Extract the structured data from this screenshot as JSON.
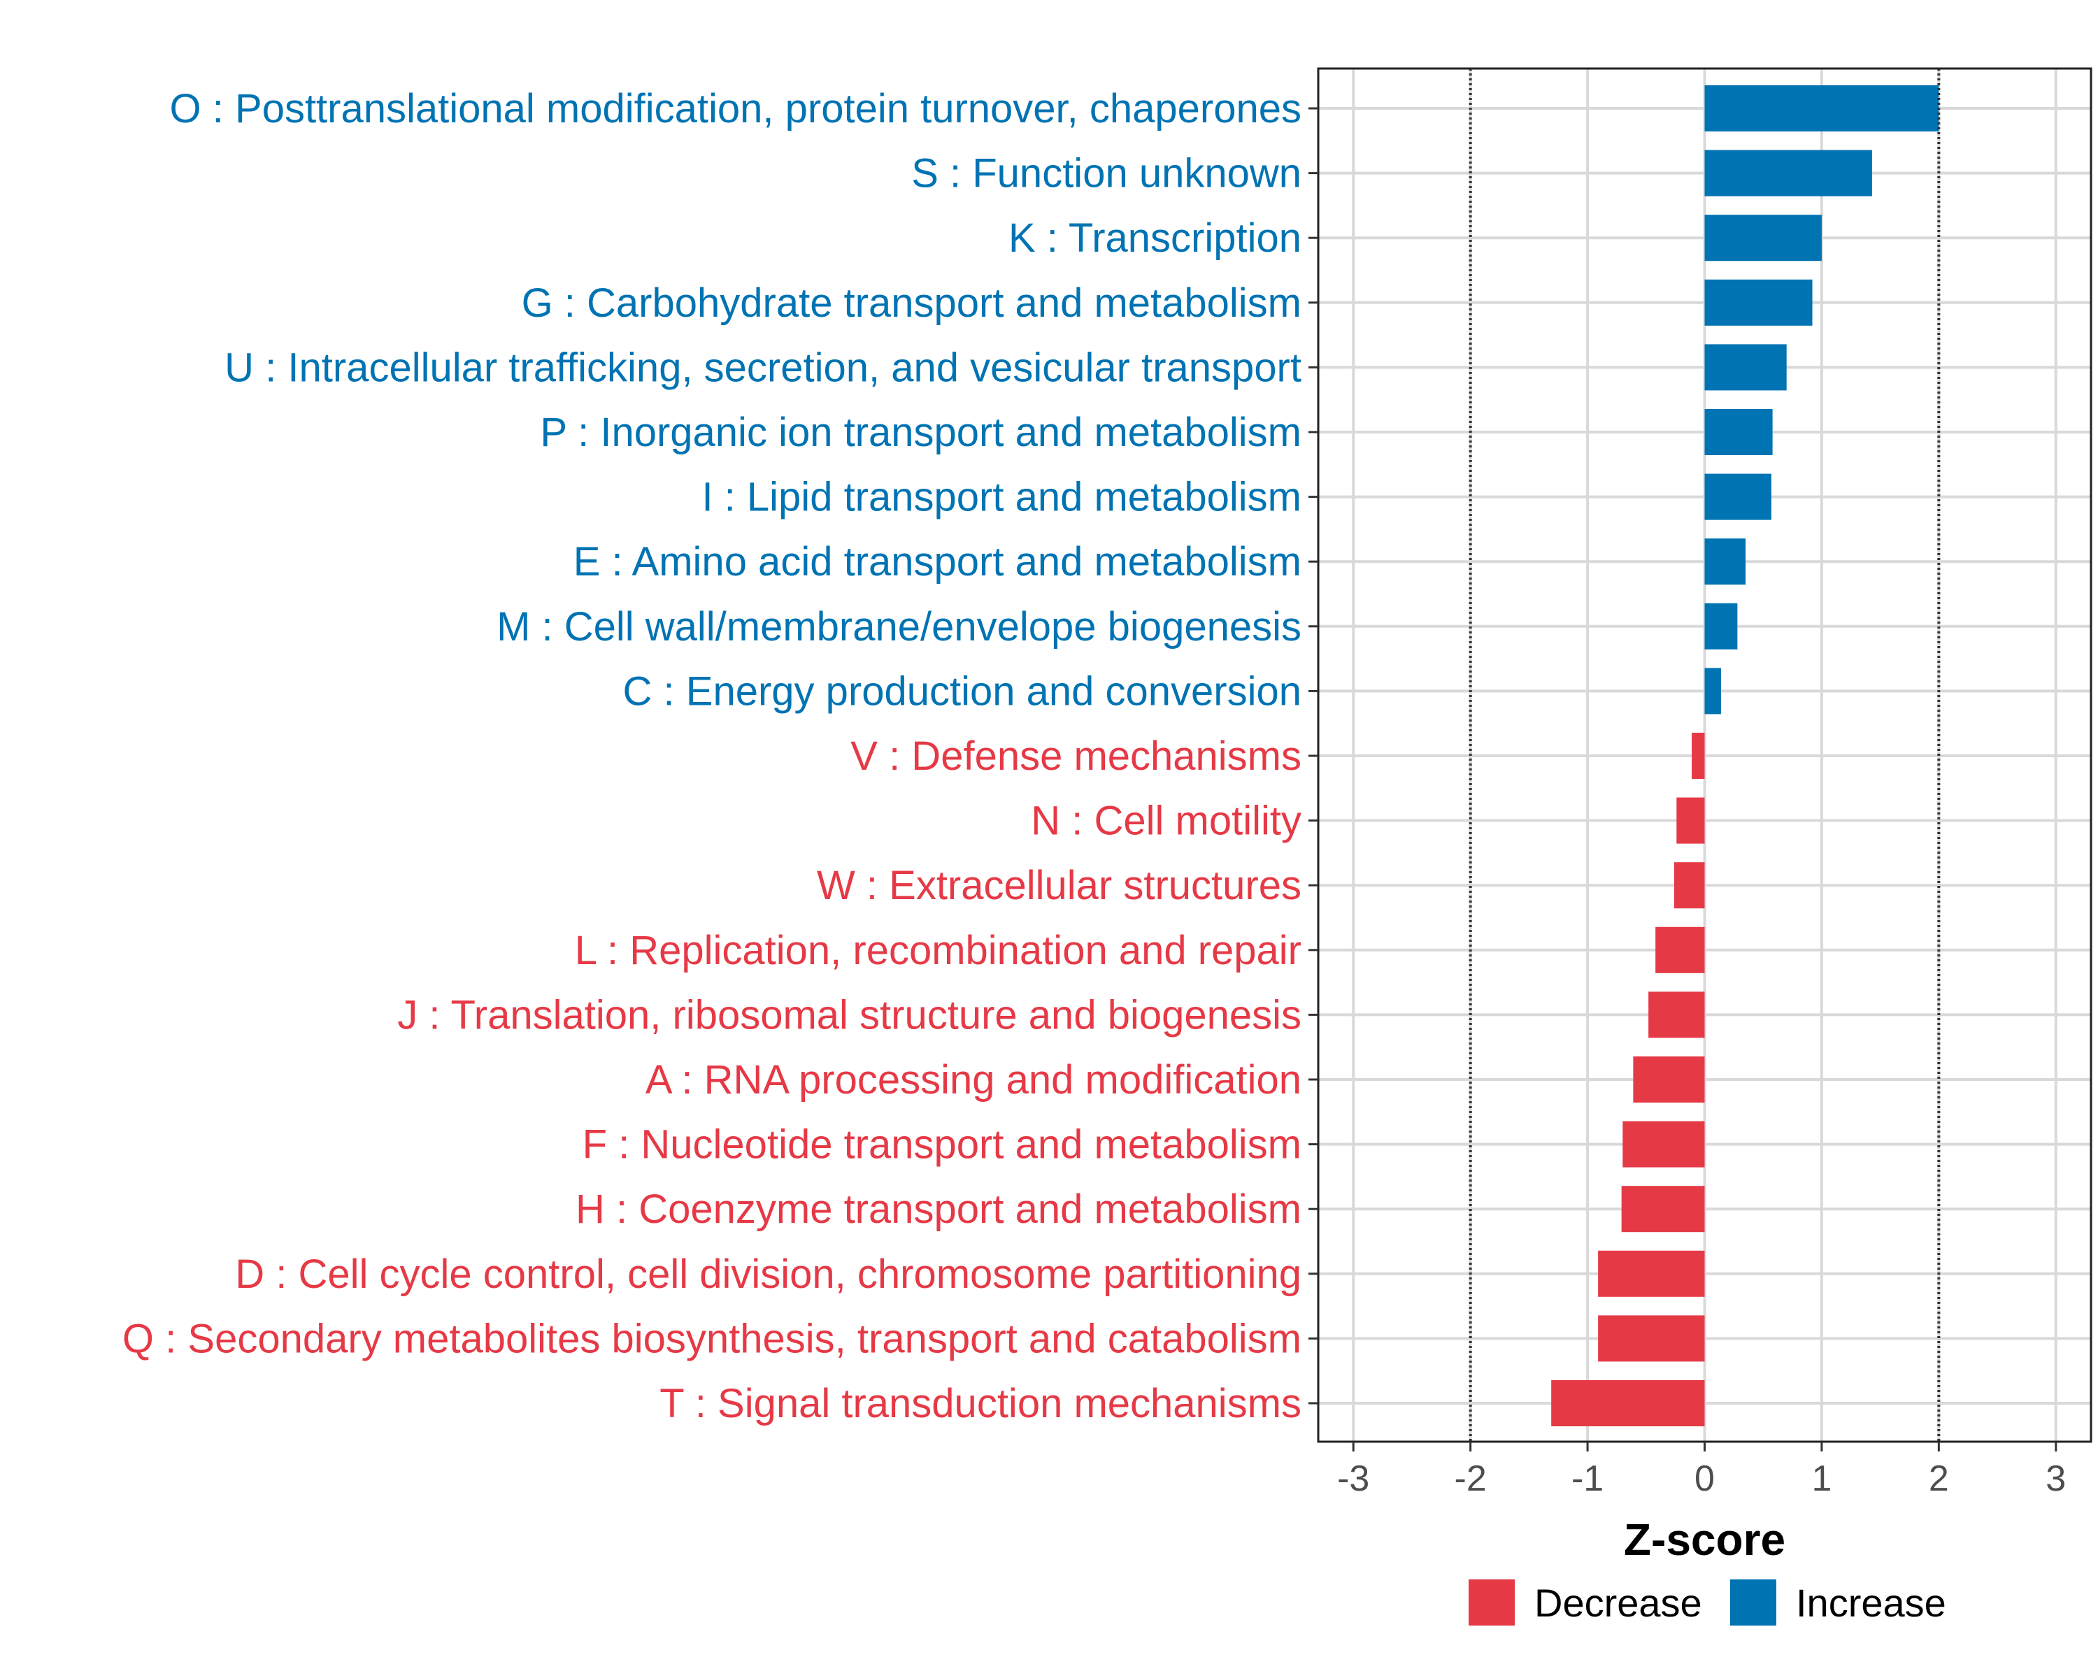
{
  "chart_data": {
    "type": "bar",
    "orientation": "horizontal",
    "xlabel": "Z-score",
    "xlim": [
      -3.3,
      3.3
    ],
    "xticks": [
      -3,
      -2,
      -1,
      0,
      1,
      2,
      3
    ],
    "xtick_labels": [
      "-3",
      "-2",
      "-1",
      "0",
      "1",
      "2",
      "3"
    ],
    "threshold_lines": [
      -2,
      2
    ],
    "grid": true,
    "colors": {
      "Increase": "#0073b3",
      "Decrease": "#e63946"
    },
    "legend": {
      "placement": "bottom",
      "entries": [
        {
          "name": "Decrease",
          "color": "#e63946"
        },
        {
          "name": "Increase",
          "color": "#0073b3"
        }
      ]
    },
    "categories": [
      "O : Posttranslational modification, protein turnover, chaperones",
      "S : Function unknown",
      "K : Transcription",
      "G : Carbohydrate transport and metabolism",
      "U : Intracellular trafficking, secretion, and vesicular transport",
      "P : Inorganic ion transport and metabolism",
      "I : Lipid transport and metabolism",
      "E : Amino acid transport and metabolism",
      "M : Cell wall/membrane/envelope biogenesis",
      "C : Energy production and conversion",
      "V : Defense mechanisms",
      "N : Cell motility",
      "W : Extracellular structures",
      "L : Replication, recombination and repair",
      "J : Translation, ribosomal structure and biogenesis",
      "A : RNA processing and modification",
      "F : Nucleotide transport and metabolism",
      "H : Coenzyme transport and metabolism",
      "D : Cell cycle control, cell division, chromosome partitioning",
      "Q : Secondary metabolites biosynthesis, transport and catabolism",
      "T : Signal transduction mechanisms"
    ],
    "values": [
      2.0,
      1.43,
      1.0,
      0.92,
      0.7,
      0.58,
      0.57,
      0.35,
      0.28,
      0.14,
      -0.11,
      -0.24,
      -0.26,
      -0.42,
      -0.48,
      -0.61,
      -0.7,
      -0.71,
      -0.91,
      -0.91,
      -1.31
    ],
    "groups": [
      "Increase",
      "Increase",
      "Increase",
      "Increase",
      "Increase",
      "Increase",
      "Increase",
      "Increase",
      "Increase",
      "Increase",
      "Decrease",
      "Decrease",
      "Decrease",
      "Decrease",
      "Decrease",
      "Decrease",
      "Decrease",
      "Decrease",
      "Decrease",
      "Decrease",
      "Decrease"
    ]
  }
}
